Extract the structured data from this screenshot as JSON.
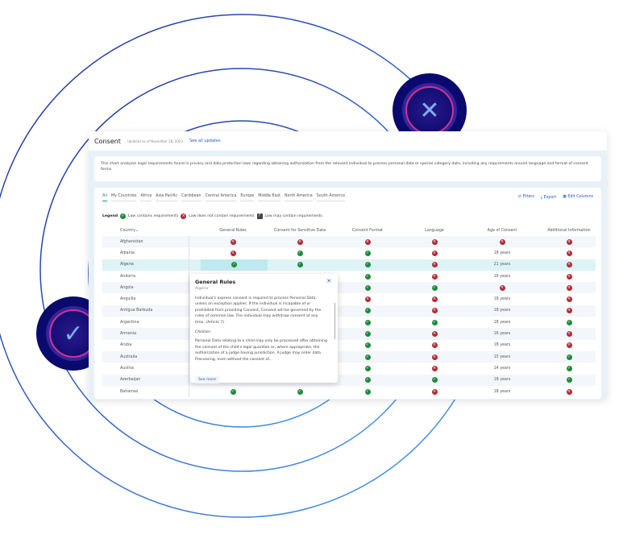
{
  "header": {
    "title": "Consent",
    "updated": "Updated as of November 28, 2023",
    "see_all": "See all updates"
  },
  "description": "This chart analyzes legal requirements found in privacy and data protection laws regarding obtaining authorization from the relevant individual to process personal data or special category data, including any requirements around language and format of consent forms.",
  "tabs": [
    "All",
    "My Countries",
    "Africa",
    "Asia Pacific",
    "Caribbean",
    "Central America",
    "Europe",
    "Middle East",
    "North America",
    "South America"
  ],
  "actions": {
    "filters": "Filters",
    "export": "Export",
    "edit_columns": "Edit Columns"
  },
  "legend": {
    "label": "Legend",
    "yes": "Law contains requirements",
    "no": "Law does not contain requirements",
    "maybe": "Law may contain requirements"
  },
  "columns": [
    "Country",
    "General Rules",
    "Consent for Sensitive Data",
    "Consent Format",
    "Language",
    "Age of Consent",
    "Additional Information"
  ],
  "rows": [
    [
      "Afghanistan",
      "no",
      "no",
      "no",
      "no",
      "no",
      "no"
    ],
    [
      "Albania",
      "no",
      "yes",
      "yes",
      "no",
      "18 years",
      "no"
    ],
    [
      "Algeria",
      "yes",
      "yes",
      "yes",
      "no",
      "21 years",
      "no"
    ],
    [
      "Andorra",
      "",
      "",
      "yes",
      "no",
      "16 years",
      "no"
    ],
    [
      "Angola",
      "",
      "",
      "yes",
      "yes",
      "no",
      "no"
    ],
    [
      "Anguilla",
      "",
      "",
      "no",
      "no",
      "18 years",
      "no"
    ],
    [
      "Antigua Barbuda",
      "",
      "",
      "yes",
      "no",
      "18 years",
      "no"
    ],
    [
      "Argentina",
      "",
      "",
      "yes",
      "yes",
      "18 years",
      "yes"
    ],
    [
      "Armenia",
      "",
      "",
      "yes",
      "no",
      "16 years",
      "no"
    ],
    [
      "Aruba",
      "",
      "",
      "yes",
      "no",
      "18 years",
      "no"
    ],
    [
      "Australia",
      "",
      "",
      "yes",
      "no",
      "15 years",
      "yes"
    ],
    [
      "Austria",
      "",
      "",
      "yes",
      "no",
      "14 years",
      "yes"
    ],
    [
      "Azerbaijan",
      "",
      "",
      "yes",
      "yes",
      "18 years",
      "yes"
    ],
    [
      "Bahamas",
      "yes",
      "yes",
      "yes",
      "no",
      "18 years",
      "no"
    ]
  ],
  "popup": {
    "title": "General Rules",
    "country": "Algeria",
    "text1": "Individual's express consent is required to process Personal Data, unless an exception applies.  If the individual is incapable of or prohibited from providing Consent, Consent will be governed by the rules of common law.  The individual may withdraw consent at any time.  (Article 7)",
    "heading2": "Children",
    "text2": "Personal Data relating to a child may only be processed after obtaining the consent of the child's legal guardian or, where appropriate, the authorization of a judge having jurisdiction.  A judge may order data Processing, even without the consent of...",
    "see_more": "See more"
  },
  "colors": {
    "accent": "#2458c8",
    "yes": "#1e8a3a",
    "no": "#b32a33",
    "navy": "#0b0a6e"
  }
}
